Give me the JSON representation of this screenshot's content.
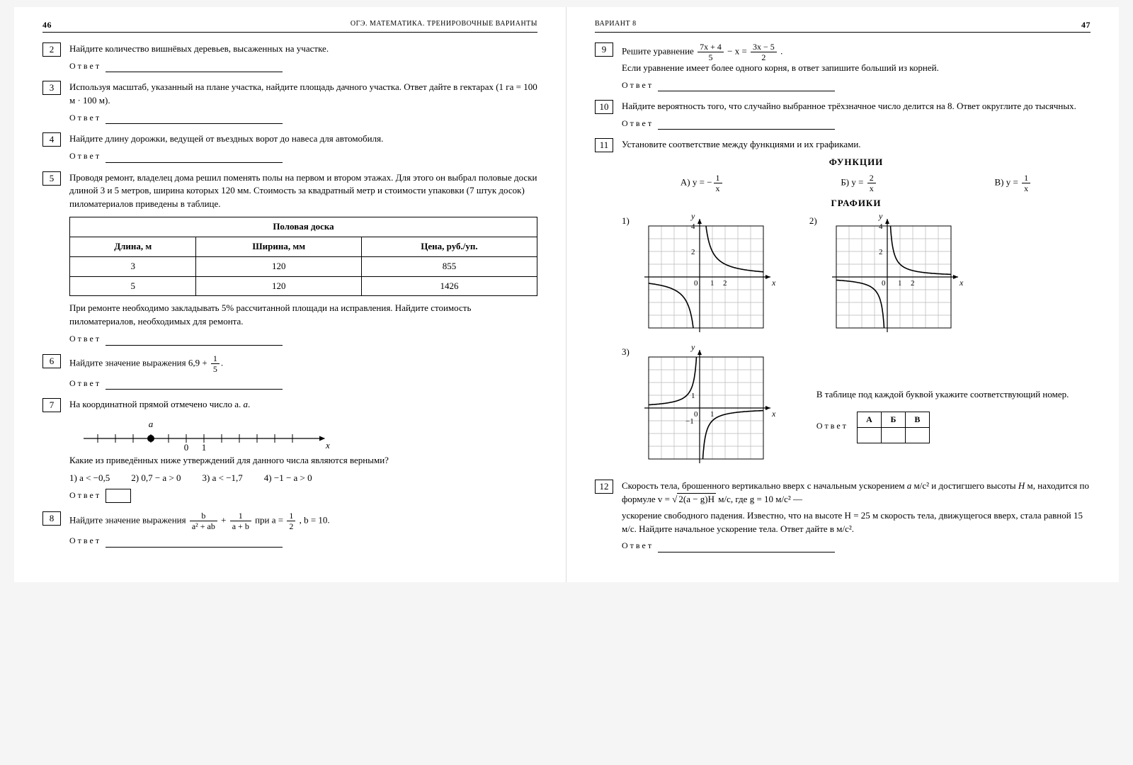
{
  "left": {
    "pagenum": "46",
    "header": "ОГЭ. МАТЕМАТИКА. ТРЕНИРОВОЧНЫЕ ВАРИАНТЫ",
    "p2": {
      "num": "2",
      "text": "Найдите количество вишнёвых деревьев, высаженных на участке.",
      "ans": "Ответ"
    },
    "p3": {
      "num": "3",
      "text": "Используя масштаб, указанный на плане участка, найдите площадь дачного участка. Ответ дайте в гектарах (1 га = 100 м · 100 м).",
      "ans": "Ответ"
    },
    "p4": {
      "num": "4",
      "text": "Найдите длину дорожки, ведущей от въездных ворот до навеса для автомобиля.",
      "ans": "Ответ"
    },
    "p5": {
      "num": "5",
      "text1": "Проводя ремонт, владелец дома решил поменять полы на первом и втором этажах. Для этого он выбрал половые доски длиной 3 и 5 метров, ширина которых 120 мм. Стоимость за квадратный метр и стоимости упаковки (7 штук досок) пиломатериалов приведены в таблице.",
      "table": {
        "title": "Половая доска",
        "cols": [
          "Длина, м",
          "Ширина, мм",
          "Цена, руб./уп."
        ],
        "rows": [
          [
            "3",
            "120",
            "855"
          ],
          [
            "5",
            "120",
            "1426"
          ]
        ]
      },
      "text2": "При ремонте необходимо закладывать 5% рассчитанной площади на исправления. Найдите стоимость пиломатериалов, необходимых для ремонта.",
      "ans": "Ответ"
    },
    "p6": {
      "num": "6",
      "pre": "Найдите значение выражения  6,9 +",
      "frac_n": "1",
      "frac_d": "5",
      "post": ".",
      "ans": "Ответ"
    },
    "p7": {
      "num": "7",
      "text": "На координатной прямой отмечено число a.",
      "a_label": "a",
      "x_label": "x",
      "ticks": [
        "0",
        "1"
      ],
      "q": "Какие из приведённых ниже утверждений для данного числа являются верными?",
      "opts": [
        "1)  a < −0,5",
        "2)  0,7 − a > 0",
        "3)  a < −1,7",
        "4)  −1 − a > 0"
      ],
      "ans": "Ответ"
    },
    "p8": {
      "num": "8",
      "pre": "Найдите значение выражения  ",
      "f1n": "b",
      "f1d": "a² + ab",
      "plus": " + ",
      "f2n": "1",
      "f2d": "a + b",
      "mid": "  при  a = ",
      "f3n": "1",
      "f3d": "2",
      "post": ", b = 10.",
      "ans": "Ответ"
    }
  },
  "right": {
    "pagenum": "47",
    "header": "ВАРИАНТ 8",
    "p9": {
      "num": "9",
      "pre": "Решите уравнение  ",
      "f1n": "7x + 4",
      "f1d": "5",
      "minus": " − x = ",
      "f2n": "3x − 5",
      "f2d": "2",
      "dot": ".",
      "line2": "Если уравнение имеет более одного корня, в ответ запишите больший из корней.",
      "ans": "Ответ"
    },
    "p10": {
      "num": "10",
      "text": "Найдите вероятность того, что случайно выбранное трёхзначное число делится на 8. Ответ округлите до тысячных.",
      "ans": "Ответ"
    },
    "p11": {
      "num": "11",
      "text": "Установите соответствие между функциями и их графиками.",
      "fn_title": "ФУНКЦИИ",
      "gr_title": "ГРАФИКИ",
      "fnA_pre": "А)  y = −",
      "fnA_n": "1",
      "fnA_d": "x",
      "fnB_pre": "Б)  y = ",
      "fnB_n": "2",
      "fnB_d": "x",
      "fnC_pre": "В)  y = ",
      "fnC_n": "1",
      "fnC_d": "x",
      "lbl1": "1)",
      "lbl2": "2)",
      "lbl3": "3)",
      "note": "В таблице под каждой буквой укажите соответствующий номер.",
      "ans": "Ответ",
      "abv": [
        "А",
        "Б",
        "В"
      ]
    },
    "p12": {
      "num": "12",
      "t1": "Скорость тела, брошенного вертикально вверх с начальным ускорением ",
      "a": "a",
      "t2": " м/с² и достигшего высоты ",
      "H": "H",
      "t3": " м, находится по формуле  v = √",
      "rad": "2(a − g)H",
      "t4": "  м/с, где  g = 10 м/с² —",
      "t5": "ускорение свободного падения. Известно, что на высоте H = 25 м скорость тела, движущегося вверх, стала равной 15 м/с. Найдите начальное ускорение тела. Ответ дайте в м/с².",
      "ans": "Ответ"
    }
  },
  "style": {
    "grid_color": "#b8b8b8",
    "axis_color": "#000000",
    "curve_color": "#000000"
  }
}
